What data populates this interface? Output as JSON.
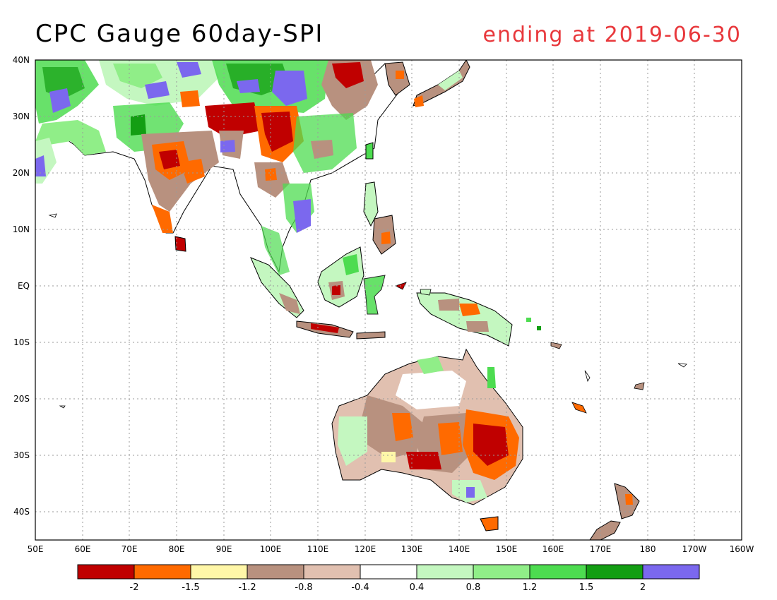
{
  "title": "CPC Gauge 60day-SPI",
  "subtitle": "ending at 2019-06-30",
  "map": {
    "lat_ticks": [
      "40N",
      "30N",
      "20N",
      "10N",
      "EQ",
      "10S",
      "20S",
      "30S",
      "40S"
    ],
    "lon_ticks": [
      "50E",
      "60E",
      "70E",
      "80E",
      "90E",
      "100E",
      "110E",
      "120E",
      "130E",
      "140E",
      "150E",
      "160E",
      "170E",
      "180",
      "170W",
      "160W"
    ],
    "grid": true
  },
  "legend": {
    "colors": [
      "#c00000",
      "#ff6a00",
      "#fff7a8",
      "#b8917f",
      "#e1c0b0",
      "#ffffff",
      "#c4f7c0",
      "#90ee88",
      "#4ddc50",
      "#139e13",
      "#7b68ee"
    ],
    "labels": [
      "-2",
      "-1.5",
      "-1.2",
      "-0.8",
      "-0.4",
      "0.4",
      "0.8",
      "1.2",
      "1.5",
      "2"
    ]
  }
}
